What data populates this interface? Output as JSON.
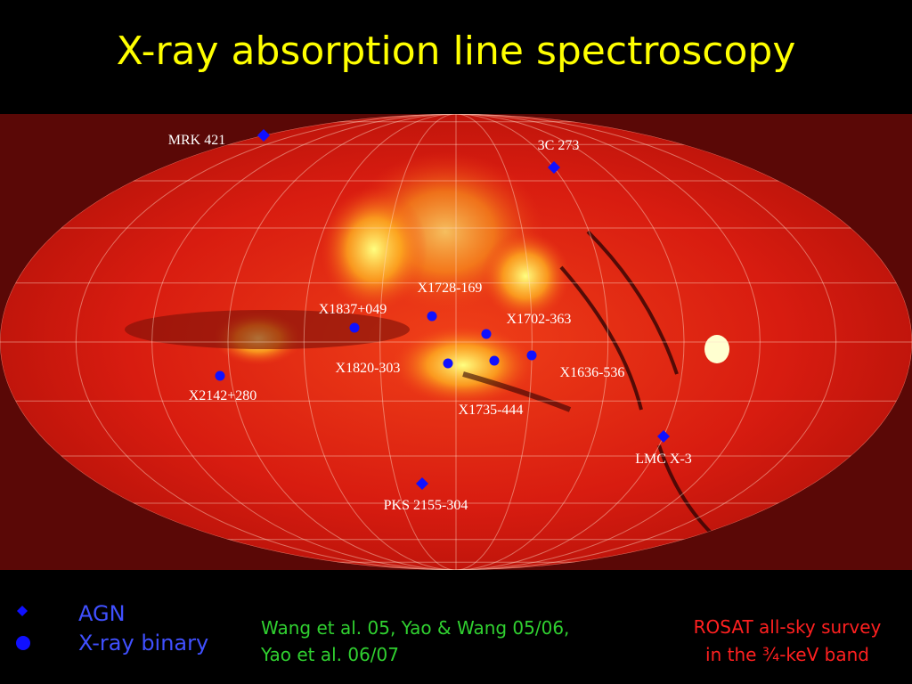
{
  "title": "X-ray absorption line spectroscopy",
  "agn": [
    "MRK 421",
    "3C 273",
    "LMC X-3",
    "PKS 2155-304"
  ],
  "binaries": [
    "X1728-169",
    "X1837+049",
    "X1702-363",
    "X1820-303",
    "X1636-536",
    "X1735-444",
    "X2142+280"
  ],
  "legend": [
    "AGN",
    "X-ray binary"
  ],
  "citation": [
    "Wang et al. 05, Yao & Wang 05/06,",
    "Yao et al.  06/07"
  ],
  "credit": [
    "ROSAT all-sky survey",
    "in the ¾-keV band"
  ]
}
